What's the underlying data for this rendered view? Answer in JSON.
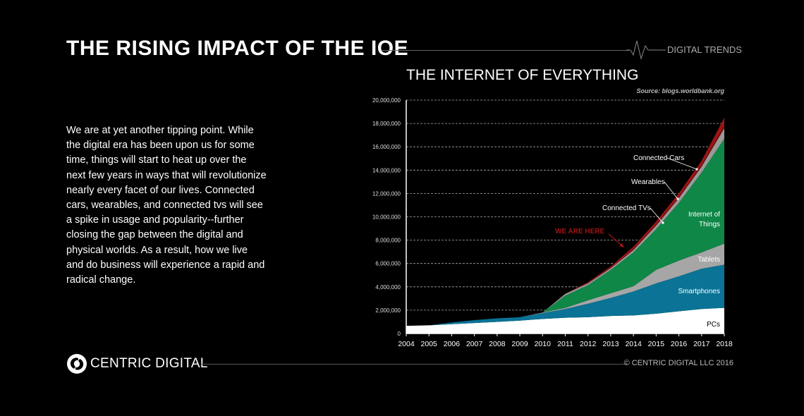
{
  "header": {
    "title": "THE RISING IMPACT OF THE IOE",
    "tag": "DIGITAL TRENDS"
  },
  "body_text": "We are at yet another tipping point. While the digital era has been upon us for some time, things will start to heat up over the next few years in ways that will revolutionize nearly every facet of our lives. Connected cars, wearables, and connected tvs will see a spike in usage and popularity--further closing the gap between the digital and physical worlds. As a result, how we live and do business will experience a rapid and radical change.",
  "footer": {
    "brand": "CENTRIC DIGITAL",
    "copyright": "© CENTRIC DIGITAL LLC 2016"
  },
  "chart_data": {
    "type": "area",
    "stacked": true,
    "title": "THE INTERNET OF EVERYTHING",
    "source": "Source: blogs.worldbank.org",
    "units": "millions",
    "x": [
      "2004",
      "2005",
      "2006",
      "2007",
      "2008",
      "2009",
      "2010",
      "2011",
      "2012",
      "2013",
      "2014",
      "2015",
      "2016",
      "2017",
      "2018"
    ],
    "ylim": [
      0,
      20
    ],
    "yticks": [
      "0",
      "2,000,000",
      "4,000,000",
      "6,000,000",
      "8,000,000",
      "10,000,000",
      "12,000,000",
      "14,000,000",
      "16,000,000",
      "18,000,000",
      "20,000,000"
    ],
    "grid": true,
    "series": [
      {
        "name": "PCs",
        "color": "#ffffff",
        "values": [
          0.66,
          0.7,
          0.8,
          0.9,
          1.0,
          1.1,
          1.25,
          1.35,
          1.4,
          1.5,
          1.55,
          1.7,
          1.9,
          2.1,
          2.2
        ]
      },
      {
        "name": "Smartphones",
        "color": "#0a7396",
        "values": [
          0,
          0,
          0.15,
          0.25,
          0.3,
          0.3,
          0.5,
          0.75,
          1.15,
          1.55,
          2.05,
          2.6,
          3.0,
          3.45,
          3.7
        ]
      },
      {
        "name": "Tablets",
        "color": "#a6a6a6",
        "values": [
          0,
          0,
          0,
          0,
          0,
          0,
          0.05,
          0.1,
          0.3,
          0.4,
          0.45,
          1.15,
          1.35,
          1.4,
          1.8
        ]
      },
      {
        "name": "Internet of Things",
        "color": "#0f8747",
        "values": [
          0,
          0,
          0,
          0,
          0,
          0,
          0,
          1.05,
          1.3,
          2.0,
          2.9,
          3.5,
          4.95,
          6.85,
          9.0
        ]
      },
      {
        "name": "Connected TVs",
        "color": "#9a9a9a",
        "values": [
          0,
          0,
          0,
          0,
          0,
          0,
          0,
          0.15,
          0.15,
          0.15,
          0.2,
          0.3,
          0.4,
          0.5,
          0.9
        ]
      },
      {
        "name": "Wearables",
        "color": "#6e0f0f",
        "values": [
          0,
          0,
          0,
          0,
          0,
          0,
          0,
          0,
          0.02,
          0.05,
          0.08,
          0.1,
          0.12,
          0.15,
          0.2
        ]
      },
      {
        "name": "Connected Cars",
        "color": "#a01414",
        "values": [
          0,
          0,
          0,
          0,
          0,
          0,
          0,
          0,
          0.08,
          0.1,
          0.2,
          0.25,
          0.3,
          0.35,
          0.7
        ]
      }
    ],
    "annotations": {
      "we_are_here": "WE ARE HERE",
      "iot_line1": "Internet of",
      "iot_line2": "Things"
    },
    "highlight_color": "#a01414"
  }
}
